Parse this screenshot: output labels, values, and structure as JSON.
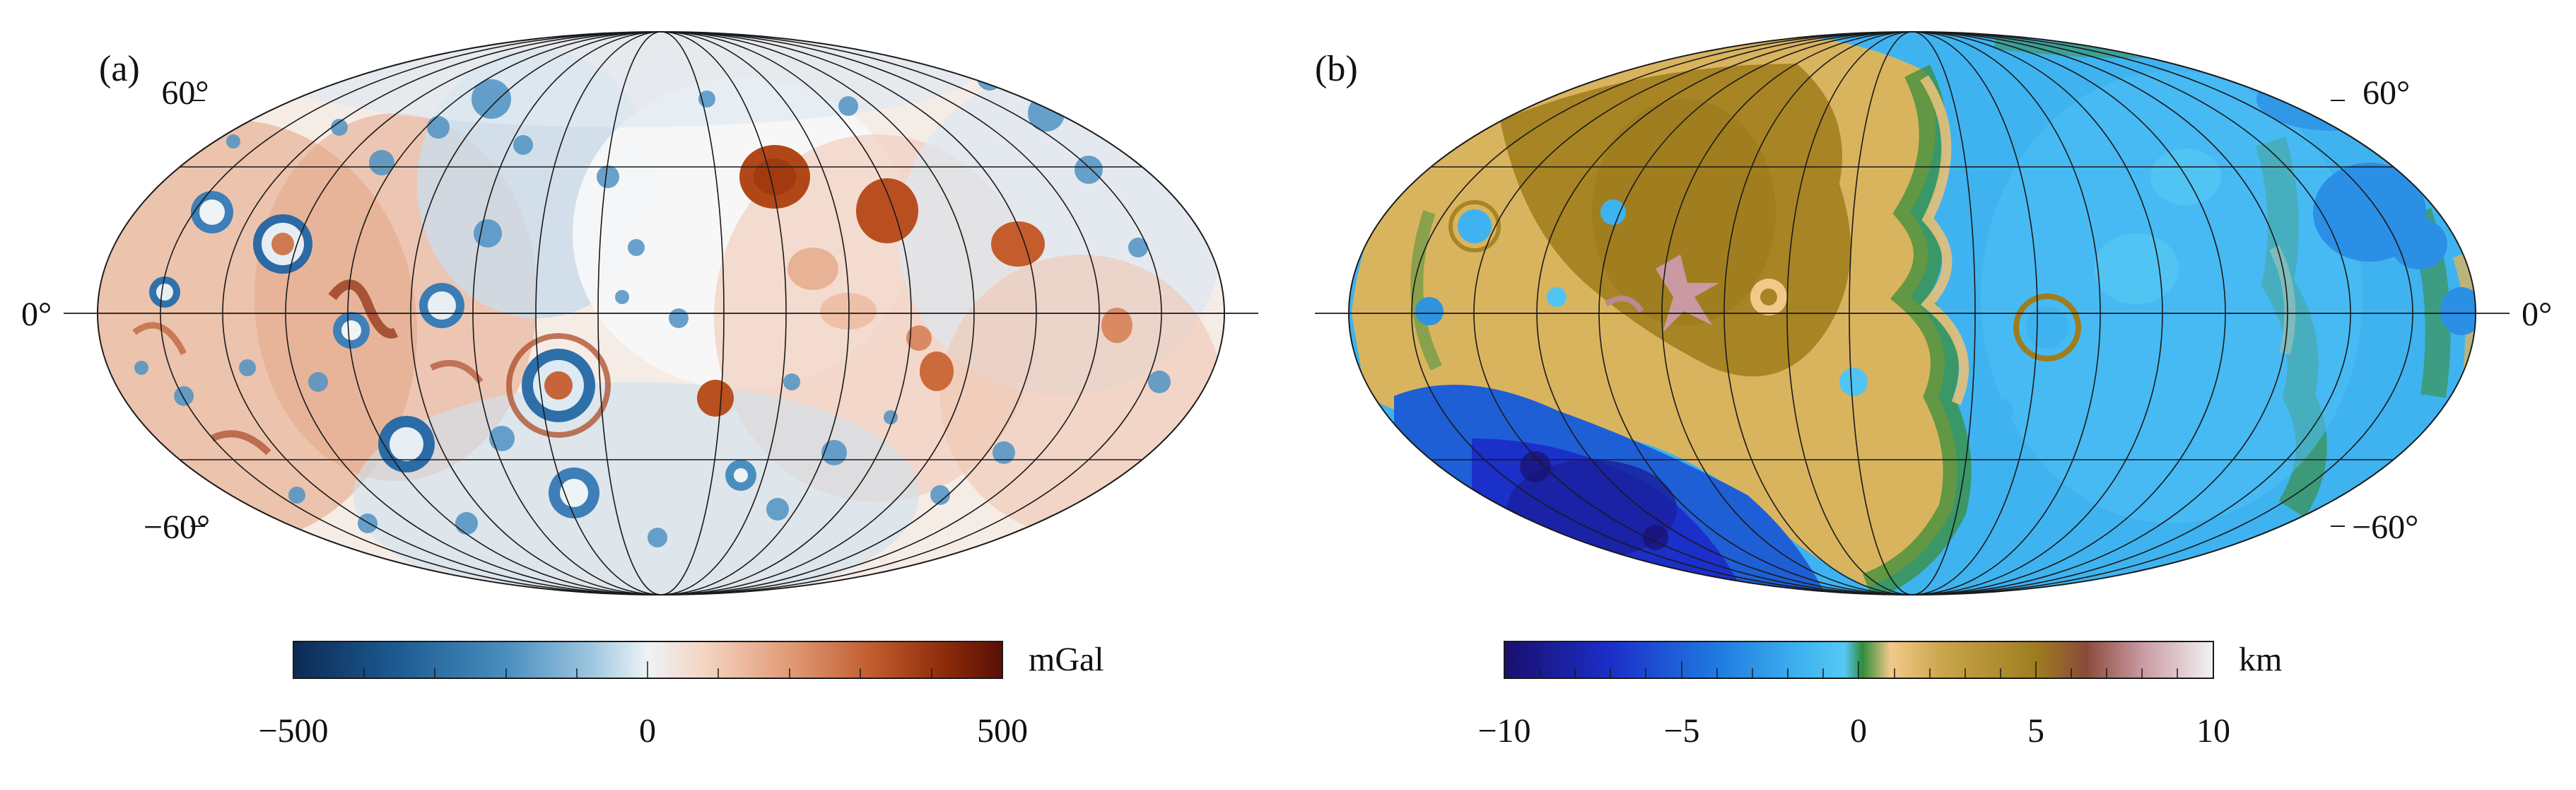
{
  "panels": [
    {
      "label": "(a)",
      "lat_labels": {
        "north": "60°",
        "equator": "0°",
        "south": "−60°"
      },
      "colorbar": {
        "unit": "mGal",
        "ticks": [
          "−500",
          "0",
          "500"
        ],
        "range": [
          -500,
          500
        ],
        "colors": [
          "#0b2a55",
          "#1d5c93",
          "#4a8ebf",
          "#9ec6e0",
          "#eef3f6",
          "#f4d4c2",
          "#e19a76",
          "#c05a2c",
          "#8c2a0a",
          "#5a0f05"
        ]
      }
    },
    {
      "label": "(b)",
      "lat_labels": {
        "north": "60°",
        "equator": "0°",
        "south": "−60°"
      },
      "colorbar": {
        "unit": "km",
        "ticks": [
          "−10",
          "−5",
          "0",
          "5",
          "10"
        ],
        "range": [
          -10,
          10
        ],
        "colors": [
          "#1a0f6e",
          "#1b2fc9",
          "#1f7ae0",
          "#3fb3f0",
          "#56c8f5",
          "#2f8d3a",
          "#f3c98a",
          "#c9a44a",
          "#9e7d1f",
          "#8a4a3a",
          "#c99aa2",
          "#f2f2f2"
        ]
      }
    }
  ]
}
